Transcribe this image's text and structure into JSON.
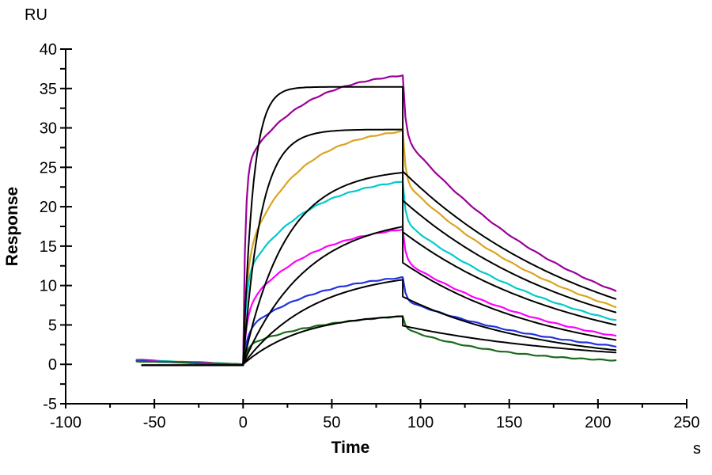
{
  "canvas": {
    "background": "#ffffff",
    "axis_color": "#000000"
  },
  "chart_data": {
    "type": "line",
    "description": "SPR sensorgram: measured binding curves at six analyte concentrations with black kinetic fit overlays; association 0-90 s, dissociation 90-210 s",
    "grid": false,
    "legend": false,
    "x_axis": {
      "label": "Time",
      "unit": "s",
      "min": -100,
      "max": 250,
      "major_tick": 50,
      "minor_tick": 25
    },
    "y_axis": {
      "label": "Response",
      "unit": "RU",
      "min": -5,
      "max": 40,
      "major_tick": 5,
      "minor_tick": 2.5
    },
    "phases": {
      "baseline_start_s": -60,
      "injection_start_s": 0,
      "injection_end_s": 90,
      "curve_end_s": 210
    },
    "series": [
      {
        "name": "conc-1-measured",
        "kind": "measured",
        "color": "#990099",
        "baseline_start": 0.55,
        "assoc": {
          "a1": 25.0,
          "k1": 0.8,
          "a2": 12.5,
          "k2": 0.03
        },
        "r_at_90s": 36.7,
        "dissoc": {
          "drop_to": 29.0,
          "kd": 0.00948
        },
        "r_at_210s": 9.3
      },
      {
        "name": "conc-1-fit",
        "kind": "fit",
        "color": "#000000",
        "assoc": {
          "a": 35.2,
          "k": 0.18
        },
        "r_at_90s": 35.2,
        "dissoc": {
          "drop_to": 24.5,
          "kd": 0.00902
        },
        "r_at_210s": 8.3
      },
      {
        "name": "conc-2-measured",
        "kind": "measured",
        "color": "#DAA520",
        "baseline_start": 0.5,
        "assoc": {
          "a1": 13.0,
          "k1": 0.5,
          "a2": 17.3,
          "k2": 0.035
        },
        "r_at_90s": 29.6,
        "dissoc": {
          "drop_to": 23.3,
          "kd": 0.00967
        },
        "r_at_210s": 7.3
      },
      {
        "name": "conc-2-fit",
        "kind": "fit",
        "color": "#000000",
        "assoc": {
          "a": 29.8,
          "k": 0.1
        },
        "r_at_90s": 29.8,
        "dissoc": {
          "drop_to": 20.8,
          "kd": 0.00957
        },
        "r_at_210s": 6.6
      },
      {
        "name": "conc-3-measured",
        "kind": "measured",
        "color": "#00CCCC",
        "baseline_start": 0.5,
        "assoc": {
          "a1": 11.0,
          "k1": 0.6,
          "a2": 13.2,
          "k2": 0.0285
        },
        "r_at_90s": 23.2,
        "dissoc": {
          "drop_to": 18.2,
          "kd": 0.00982
        },
        "r_at_210s": 5.6
      },
      {
        "name": "conc-3-fit",
        "kind": "fit",
        "color": "#000000",
        "assoc": {
          "a": 24.9,
          "k": 0.042
        },
        "r_at_90s": 24.3,
        "dissoc": {
          "drop_to": 16.8,
          "kd": 0.0101
        },
        "r_at_210s": 5.0
      },
      {
        "name": "conc-4-measured",
        "kind": "measured",
        "color": "#FF00FF",
        "baseline_start": 0.45,
        "assoc": {
          "a1": 7.0,
          "k1": 0.45,
          "a2": 11.2,
          "k2": 0.026
        },
        "r_at_90s": 17.1,
        "dissoc": {
          "drop_to": 13.2,
          "kd": 0.01083
        },
        "r_at_210s": 3.6
      },
      {
        "name": "conc-4-fit",
        "kind": "fit",
        "color": "#000000",
        "assoc": {
          "a": 19.0,
          "k": 0.028
        },
        "r_at_90s": 17.5,
        "dissoc": {
          "drop_to": 12.9,
          "kd": 0.01188
        },
        "r_at_210s": 3.1
      },
      {
        "name": "conc-5-measured",
        "kind": "measured",
        "color": "#2233DD",
        "baseline_start": 0.45,
        "assoc": {
          "a1": 4.2,
          "k1": 0.45,
          "a2": 7.7,
          "k2": 0.024
        },
        "r_at_90s": 11.0,
        "dissoc": {
          "drop_to": 8.2,
          "kd": 0.01059
        },
        "r_at_210s": 2.3
      },
      {
        "name": "conc-5-fit",
        "kind": "fit",
        "color": "#000000",
        "assoc": {
          "a": 12.0,
          "k": 0.025
        },
        "r_at_90s": 10.7,
        "dissoc": {
          "drop_to": 8.6,
          "kd": 0.01303
        },
        "r_at_210s": 1.8
      },
      {
        "name": "conc-6-measured",
        "kind": "measured",
        "color": "#1A6B1A",
        "baseline_start": 0.4,
        "assoc": {
          "a1": 2.3,
          "k1": 0.45,
          "a2": 4.55,
          "k2": 0.02
        },
        "r_at_90s": 6.1,
        "dissoc": {
          "drop_to": 4.6,
          "kd": 0.0185
        },
        "r_at_210s": 0.5
      },
      {
        "name": "conc-6-fit",
        "kind": "fit",
        "color": "#000000",
        "assoc": {
          "a": 6.55,
          "k": 0.03
        },
        "r_at_90s": 6.1,
        "dissoc": {
          "drop_to": 4.9,
          "kd": 0.00986
        },
        "r_at_210s": 1.5
      }
    ]
  }
}
